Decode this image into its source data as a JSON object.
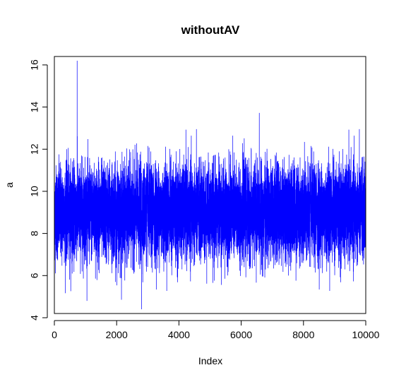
{
  "chart_data": {
    "type": "line",
    "title": "withoutAV",
    "xlabel": "Index",
    "ylabel": "a",
    "xlim": [
      0,
      10000
    ],
    "ylim": [
      4.2,
      16.4
    ],
    "x_ticks": [
      0,
      2000,
      4000,
      6000,
      8000,
      10000
    ],
    "x_tick_labels": [
      "0",
      "2000",
      "4000",
      "6000",
      "8000",
      "10000"
    ],
    "y_ticks": [
      4,
      6,
      8,
      10,
      12,
      14,
      16
    ],
    "y_tick_labels": [
      "4",
      "6",
      "8",
      "10",
      "12",
      "14",
      "16"
    ],
    "grid": false,
    "legend": "none",
    "series": [
      {
        "color": "#0000ff",
        "n_points": 10000,
        "mean": 9.0,
        "typical_range": [
          7.0,
          11.2
        ],
        "maximum": {
          "x": 730,
          "y": 16.2
        },
        "minimum": {
          "x": 2800,
          "y": 4.4
        }
      }
    ]
  }
}
